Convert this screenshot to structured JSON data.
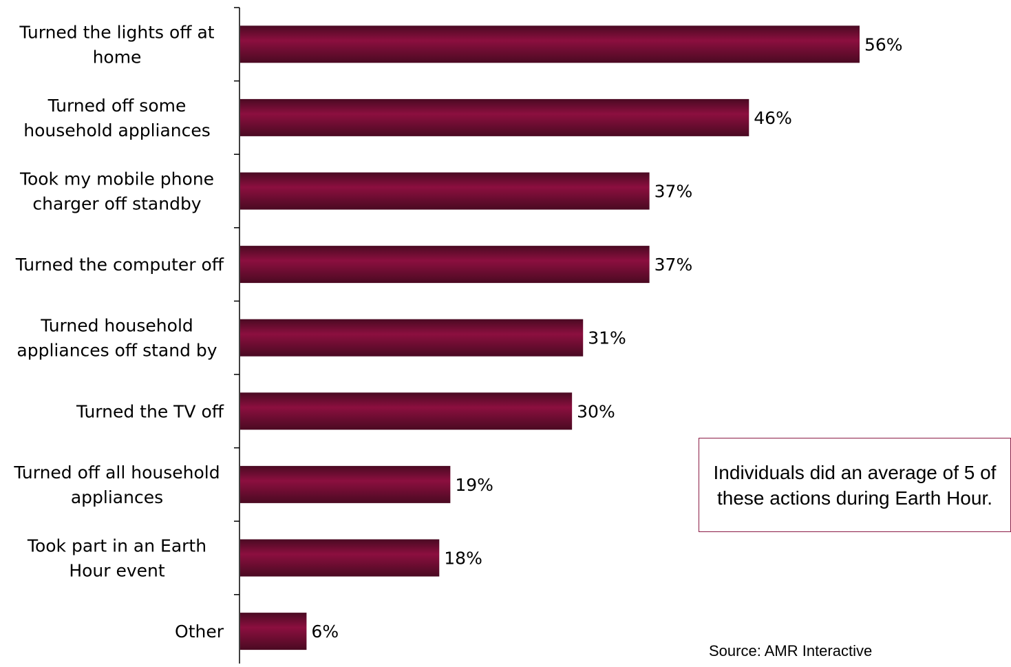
{
  "chart_data": {
    "type": "bar",
    "orientation": "horizontal",
    "categories": [
      [
        "Turned the lights off at",
        "home"
      ],
      [
        "Turned off some",
        "household appliances"
      ],
      [
        "Took my mobile phone",
        "charger off standby"
      ],
      [
        "Turned the computer off"
      ],
      [
        "Turned household",
        "appliances off stand by"
      ],
      [
        "Turned the TV off"
      ],
      [
        "Turned off all household",
        "appliances"
      ],
      [
        "Took part in an Earth",
        "Hour event"
      ],
      [
        "Other"
      ]
    ],
    "values": [
      56,
      46,
      37,
      37,
      31,
      30,
      19,
      18,
      6
    ],
    "value_labels": [
      "56%",
      "46%",
      "37%",
      "37%",
      "31%",
      "30%",
      "19%",
      "18%",
      "6%"
    ],
    "unit": "%",
    "xlim": [
      0,
      100
    ],
    "grid": false,
    "bar_color": "#8c0f3f",
    "bar_shade_color": "#4a0a22"
  },
  "annotation": {
    "text": "Individuals did an average of 5 of these actions during Earth Hour.",
    "border_color": "#8a1a44"
  },
  "source": "Source: AMR Interactive"
}
